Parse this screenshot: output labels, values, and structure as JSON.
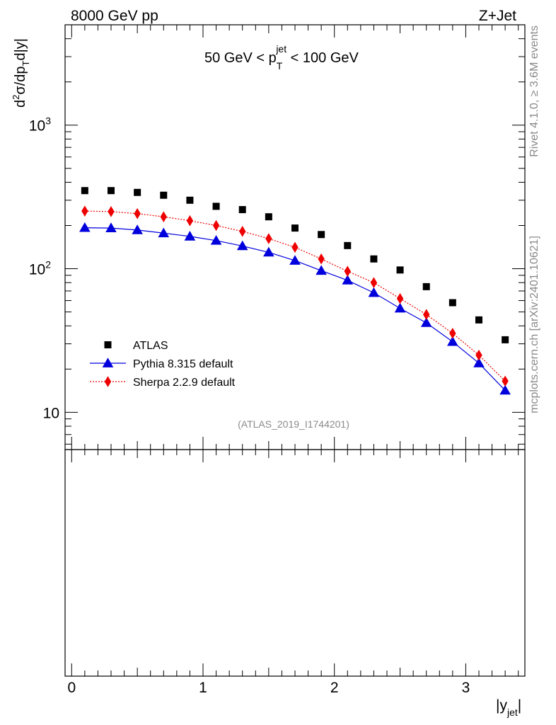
{
  "header": {
    "left": "8000 GeV pp",
    "right": "Z+Jet"
  },
  "side": {
    "rivet": "Rivet 4.1.0, ≥ 3.6M events",
    "mcplots": "mcplots.cern.ch [arXiv:2401.10621]"
  },
  "chart_data": {
    "type": "scatter",
    "title": {
      "prefix": "50 GeV < p",
      "sub": "T",
      "sup": "jet",
      "suffix": " < 100 GeV"
    },
    "watermark": "(ATLAS_2019_I1744201)",
    "ylabel": {
      "d": "d",
      "two": "2",
      "mid": "σ/dp",
      "T": "T",
      "tail": "d|y|"
    },
    "xlabel": {
      "main": "|y",
      "sub": "jet",
      "close": "|"
    },
    "yscale": "log",
    "ylim": [
      5.5,
      5000
    ],
    "xlim": [
      -0.05,
      3.45
    ],
    "yticks": [
      {
        "value": 10,
        "base": "10",
        "exp": ""
      },
      {
        "value": 100,
        "base": "10",
        "exp": "2"
      },
      {
        "value": 1000,
        "base": "10",
        "exp": "3"
      }
    ],
    "xticks": [
      {
        "value": 0,
        "label": "0"
      },
      {
        "value": 1,
        "label": "1"
      },
      {
        "value": 2,
        "label": "2"
      },
      {
        "value": 3,
        "label": "3"
      }
    ],
    "x": [
      0.1,
      0.3,
      0.5,
      0.7,
      0.9,
      1.1,
      1.3,
      1.5,
      1.7,
      1.9,
      2.1,
      2.3,
      2.5,
      2.7,
      2.9,
      3.1,
      3.3
    ],
    "series": [
      {
        "name": "ATLAS",
        "marker": "square",
        "line": "none",
        "color": "#000000",
        "values": [
          350,
          350,
          340,
          325,
          300,
          272,
          258,
          230,
          192,
          173,
          145,
          117,
          98,
          75,
          58,
          44,
          32
        ]
      },
      {
        "name": "Pythia 8.315 default",
        "marker": "triangle",
        "line": "solid",
        "color": "#0000dd",
        "values": [
          193,
          192,
          186,
          177,
          168,
          157,
          144,
          130,
          114,
          97,
          83,
          68,
          53,
          42,
          31,
          22,
          14.2
        ]
      },
      {
        "name": "Sherpa 2.2.9 default",
        "marker": "diamond",
        "line": "dotted",
        "color": "#ee0000",
        "values": [
          252,
          250,
          242,
          230,
          216,
          200,
          182,
          162,
          141,
          117,
          96,
          80,
          62,
          48,
          35.5,
          25,
          16.5
        ]
      }
    ],
    "legend": "left"
  }
}
